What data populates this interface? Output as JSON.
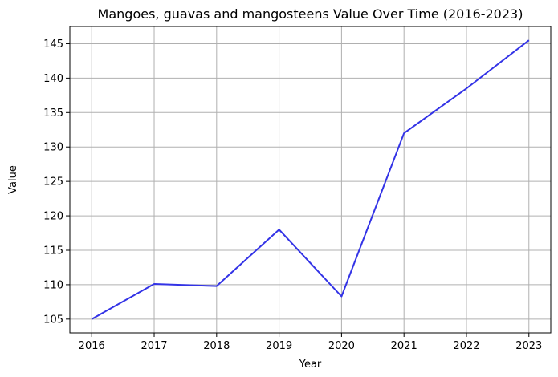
{
  "chart_data": {
    "type": "line",
    "title": "Mangoes, guavas and mangosteens Value Over Time (2016-2023)",
    "xlabel": "Year",
    "ylabel": "Value",
    "x": [
      2016,
      2017,
      2018,
      2019,
      2020,
      2021,
      2022,
      2023
    ],
    "series": [
      {
        "values": [
          105.0,
          110.1,
          109.8,
          118.0,
          108.3,
          132.0,
          138.5,
          145.5
        ],
        "color": "#3333e6"
      }
    ],
    "xlim": [
      2015.65,
      2023.35
    ],
    "ylim": [
      103.0,
      147.5
    ],
    "xticks": [
      "2016",
      "2017",
      "2018",
      "2019",
      "2020",
      "2021",
      "2022",
      "2023"
    ],
    "yticks": [
      "105",
      "110",
      "115",
      "120",
      "125",
      "130",
      "135",
      "140",
      "145"
    ],
    "grid": true
  }
}
